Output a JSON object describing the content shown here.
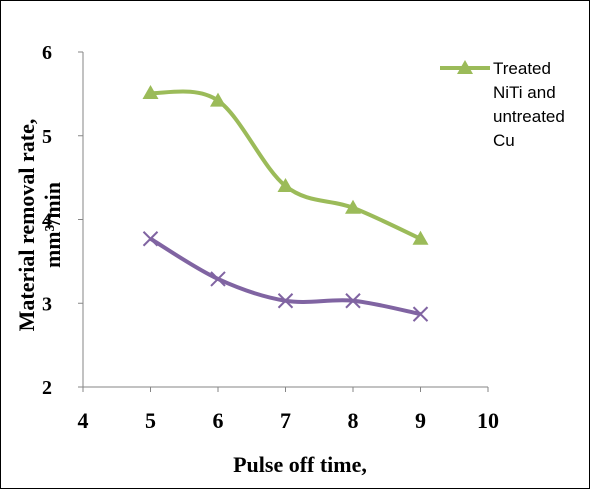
{
  "chart_data": {
    "type": "line",
    "ylabel": [
      "Material removal rate,",
      "mm³/min"
    ],
    "xlabel": "Pulse off time,",
    "x": [
      5,
      6,
      7,
      8,
      9
    ],
    "series": [
      {
        "name": "Treated NiTi and untreated Cu",
        "color": "#9bbb59",
        "marker": "triangle",
        "values": [
          5.51,
          5.42,
          4.4,
          4.14,
          3.77
        ]
      },
      {
        "color": "#8064a2",
        "marker": "x",
        "values": [
          3.77,
          3.29,
          3.03,
          3.03,
          2.87
        ]
      }
    ],
    "xlim": [
      4,
      10
    ],
    "xticks": [
      4,
      5,
      6,
      7,
      8,
      9,
      10
    ],
    "ylim": [
      2,
      6
    ],
    "yticks": [
      2,
      3,
      4,
      5,
      6
    ],
    "grid": false,
    "smooth": true,
    "legend": "top-right"
  }
}
